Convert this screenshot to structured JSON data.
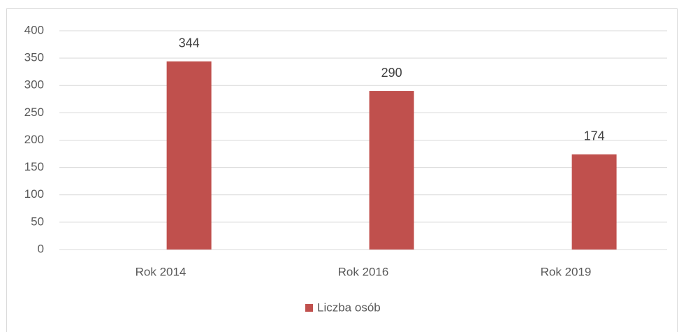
{
  "chart_data": {
    "type": "bar",
    "categories": [
      "Rok 2014",
      "Rok 2016",
      "Rok 2019"
    ],
    "series": [
      {
        "name": "Liczba osób",
        "color": "#c0504d",
        "values": [
          344,
          290,
          174
        ]
      }
    ],
    "ylim": [
      0,
      400
    ],
    "yticks": [
      0,
      50,
      100,
      150,
      200,
      250,
      300,
      350,
      400
    ],
    "grid": true,
    "legend": "bottom",
    "data_labels": true
  }
}
